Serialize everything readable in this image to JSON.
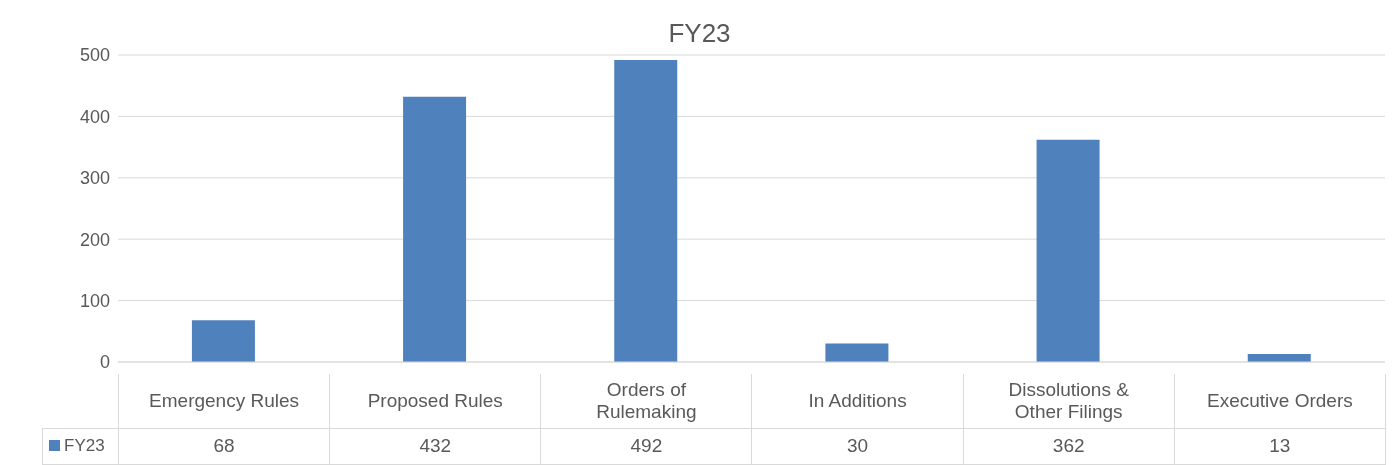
{
  "chart_data": {
    "type": "bar",
    "title": "FY23",
    "categories": [
      "Emergency Rules",
      "Proposed Rules",
      "Orders of Rulemaking",
      "In Additions",
      "Dissolutions & Other Filings",
      "Executive Orders"
    ],
    "series": [
      {
        "name": "FY23",
        "color": "#4f81bd",
        "values": [
          68,
          432,
          492,
          30,
          362,
          13
        ]
      }
    ],
    "ylim": [
      0,
      500
    ],
    "yticks": [
      0,
      100,
      200,
      300,
      400,
      500
    ],
    "grid": "y",
    "data_labels": true,
    "legend": "bottom"
  }
}
